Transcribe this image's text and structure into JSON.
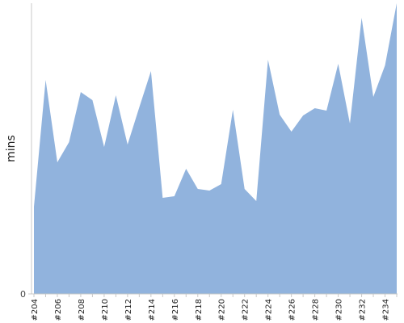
{
  "chart_data": {
    "type": "area",
    "ylabel": "mins",
    "xlabel": "",
    "title": "",
    "grid": false,
    "legend": "none",
    "fill_color": "#91b3dd",
    "ylim": [
      0,
      360
    ],
    "y_ticks": [
      {
        "value": 0,
        "label": "0"
      }
    ],
    "x": [
      "#204",
      "#205",
      "#206",
      "#207",
      "#208",
      "#209",
      "#210",
      "#211",
      "#212",
      "#213",
      "#214",
      "#215",
      "#216",
      "#217",
      "#218",
      "#219",
      "#220",
      "#221",
      "#222",
      "#223",
      "#224",
      "#225",
      "#226",
      "#227",
      "#228",
      "#229",
      "#230",
      "#231",
      "#232",
      "#233",
      "#234",
      "#235"
    ],
    "x_tick_labels": [
      "#204",
      "#206",
      "#208",
      "#210",
      "#212",
      "#214",
      "#216",
      "#218",
      "#220",
      "#222",
      "#224",
      "#226",
      "#228",
      "#230",
      "#232",
      "#234"
    ],
    "series": [
      {
        "values": [
          108,
          265,
          163,
          188,
          250,
          240,
          182,
          246,
          185,
          231,
          276,
          119,
          121,
          155,
          130,
          128,
          136,
          228,
          130,
          115,
          290,
          222,
          201,
          221,
          230,
          227,
          285,
          211,
          342,
          244,
          283,
          360
        ]
      }
    ]
  }
}
